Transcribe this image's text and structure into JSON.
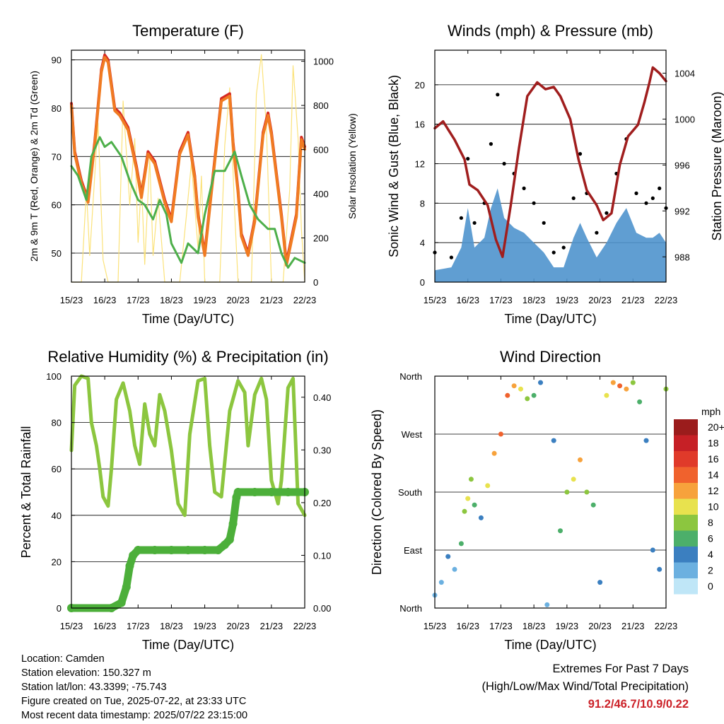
{
  "chart_data": [
    {
      "type": "line",
      "title": "Temperature (F)",
      "xlabel": "Time (Day/UTC)",
      "ylabel_left": "2m & 9m T (Red, Orange) & 2m Td (Green)",
      "ylabel_right": "Solar Insolation (Yellow)",
      "x_ticks": [
        "15/23",
        "16/23",
        "17/23",
        "18/23",
        "19/23",
        "20/23",
        "21/23",
        "22/23"
      ],
      "ylim_left": [
        44,
        92
      ],
      "yticks_left": [
        50,
        60,
        70,
        80,
        90
      ],
      "ylim_right": [
        0,
        1050
      ],
      "yticks_right": [
        0,
        200,
        400,
        600,
        800,
        1000
      ],
      "grid": "horizontal",
      "series": [
        {
          "name": "2m T",
          "color": "#d62a22",
          "axis": "left",
          "x": [
            0,
            0.1,
            0.3,
            0.5,
            0.7,
            0.9,
            1.0,
            1.1,
            1.3,
            1.45,
            1.7,
            1.95,
            2.1,
            2.3,
            2.5,
            2.8,
            3.0,
            3.25,
            3.5,
            3.7,
            3.8,
            4.0,
            4.2,
            4.5,
            4.75,
            4.85,
            5.0,
            5.1,
            5.3,
            5.5,
            5.75,
            5.9,
            6.0,
            6.3,
            6.45,
            6.75,
            6.9,
            7.0
          ],
          "y": [
            81,
            71,
            65,
            61,
            73,
            88,
            91,
            90,
            80,
            79,
            76,
            68,
            62,
            71,
            69,
            61,
            57,
            71,
            75,
            66,
            58,
            50,
            63,
            82,
            83,
            73,
            63,
            54,
            50,
            57,
            75,
            79,
            75,
            58,
            48,
            58,
            74,
            72
          ]
        },
        {
          "name": "9m T",
          "color": "#f07b22",
          "axis": "left",
          "x": [
            0,
            0.1,
            0.3,
            0.5,
            0.7,
            0.9,
            1.0,
            1.1,
            1.3,
            1.45,
            1.7,
            1.95,
            2.1,
            2.3,
            2.5,
            2.8,
            3.0,
            3.25,
            3.5,
            3.7,
            3.8,
            4.0,
            4.2,
            4.5,
            4.75,
            4.85,
            5.0,
            5.1,
            5.3,
            5.5,
            5.75,
            5.9,
            6.0,
            6.3,
            6.45,
            6.75,
            6.9,
            7.0
          ],
          "y": [
            80.5,
            70.5,
            64.5,
            60.5,
            72.5,
            87.5,
            90.5,
            89.5,
            79.5,
            78.5,
            75.5,
            67.5,
            61.5,
            70.5,
            68.5,
            60.5,
            56.5,
            70.5,
            74.5,
            65.5,
            57.5,
            49.5,
            62.5,
            81.5,
            82.5,
            72.5,
            62.5,
            53.5,
            49.5,
            56.5,
            74.5,
            78.5,
            74.5,
            57.5,
            47.5,
            57.5,
            73.5,
            71.5
          ]
        },
        {
          "name": "2m Td",
          "color": "#4daf4a",
          "axis": "left",
          "x": [
            0,
            0.2,
            0.45,
            0.6,
            0.85,
            1.0,
            1.2,
            1.5,
            1.75,
            2.0,
            2.2,
            2.45,
            2.65,
            2.85,
            3.0,
            3.3,
            3.5,
            3.8,
            4.0,
            4.3,
            4.6,
            4.9,
            5.1,
            5.35,
            5.6,
            5.9,
            6.1,
            6.3,
            6.5,
            6.7,
            7.0
          ],
          "y": [
            68,
            66,
            61,
            70,
            74,
            72,
            73,
            70,
            65,
            61,
            60,
            57,
            61,
            58,
            52,
            48,
            52,
            50,
            58,
            67,
            67,
            71,
            66,
            60,
            57,
            55,
            55,
            50,
            47,
            49,
            48
          ]
        },
        {
          "name": "Solar Insolation",
          "color": "#fbe27a",
          "axis": "right",
          "x": [
            0,
            0.3,
            0.45,
            0.55,
            0.8,
            0.95,
            1.1,
            1.4,
            1.55,
            1.75,
            1.9,
            2.0,
            2.1,
            2.2,
            2.35,
            2.45,
            2.6,
            2.8,
            3.0,
            3.25,
            3.45,
            3.6,
            3.8,
            3.9,
            4.0,
            4.2,
            4.45,
            4.6,
            4.75,
            4.9,
            5.0,
            5.2,
            5.4,
            5.55,
            5.7,
            5.85,
            6.0,
            6.2,
            6.35,
            6.55,
            6.65,
            6.8,
            6.9,
            7.0
          ],
          "y": [
            0,
            0,
            420,
            120,
            720,
            100,
            0,
            0,
            820,
            350,
            650,
            180,
            460,
            80,
            560,
            120,
            380,
            0,
            0,
            0,
            300,
            540,
            150,
            480,
            0,
            0,
            0,
            620,
            880,
            310,
            0,
            0,
            0,
            850,
            1030,
            700,
            0,
            0,
            0,
            420,
            980,
            650,
            240,
            0
          ]
        }
      ]
    },
    {
      "type": "scatter",
      "title": "Winds (mph) & Pressure (mb)",
      "xlabel": "Time (Day/UTC)",
      "ylabel_left": "Sonic Wind & Gust (Blue, Black)",
      "ylabel_right": "Station Pressure (Maroon)",
      "x_ticks": [
        "15/23",
        "16/23",
        "17/23",
        "18/23",
        "19/23",
        "20/23",
        "21/23",
        "22/23"
      ],
      "ylim_left": [
        0,
        23.5
      ],
      "yticks_left": [
        0,
        4,
        8,
        12,
        16,
        20
      ],
      "ylim_right": [
        985.8,
        1006
      ],
      "yticks_right": [
        988,
        992,
        996,
        1000,
        1004
      ],
      "grid": "horizontal",
      "series": [
        {
          "name": "Sonic Wind",
          "color": "#4f94cd",
          "axis": "left",
          "x": [
            0,
            0.5,
            0.8,
            1.0,
            1.2,
            1.5,
            1.7,
            1.9,
            2.1,
            2.4,
            2.7,
            3.0,
            3.3,
            3.6,
            3.9,
            4.2,
            4.4,
            4.6,
            4.9,
            5.2,
            5.5,
            5.8,
            6.1,
            6.4,
            6.6,
            6.8,
            7.0
          ],
          "y": [
            1.2,
            1.5,
            3.5,
            7.5,
            3.5,
            4.5,
            7.5,
            9.5,
            6.5,
            5.5,
            5.0,
            4.0,
            3.0,
            1.5,
            1.5,
            4.5,
            6.0,
            4.5,
            2.5,
            4.0,
            6.0,
            7.5,
            5.0,
            4.5,
            4.5,
            5.0,
            4.0
          ]
        },
        {
          "name": "Gust",
          "color": "#000000",
          "axis": "left",
          "x": [
            0,
            0.5,
            0.8,
            1.0,
            1.2,
            1.5,
            1.7,
            1.9,
            2.1,
            2.4,
            2.7,
            3.0,
            3.3,
            3.6,
            3.9,
            4.2,
            4.4,
            4.6,
            4.9,
            5.2,
            5.5,
            5.8,
            6.1,
            6.4,
            6.6,
            6.8,
            7.0
          ],
          "y": [
            3.0,
            2.5,
            6.5,
            12.5,
            6.0,
            8.0,
            14.0,
            19.0,
            12.0,
            11.0,
            9.5,
            8.0,
            6.0,
            3.0,
            3.5,
            8.5,
            13.0,
            9.0,
            5.0,
            7.0,
            11.0,
            14.5,
            9.0,
            8.0,
            8.5,
            9.5,
            7.5
          ]
        },
        {
          "name": "Station Pressure",
          "color": "#a01e1e",
          "axis": "right",
          "x": [
            0,
            0.25,
            0.6,
            0.9,
            1.05,
            1.3,
            1.6,
            1.85,
            2.05,
            2.3,
            2.55,
            2.8,
            3.1,
            3.35,
            3.6,
            3.8,
            4.1,
            4.35,
            4.6,
            4.9,
            5.1,
            5.35,
            5.6,
            5.85,
            6.0,
            6.15,
            6.35,
            6.5,
            6.6,
            6.8,
            7.0
          ],
          "y": [
            999.2,
            999.8,
            998.2,
            996.5,
            994.3,
            993.8,
            992.5,
            989.5,
            988.0,
            992.5,
            997.5,
            1002.0,
            1003.2,
            1002.6,
            1002.8,
            1002.0,
            1000.0,
            996.5,
            993.8,
            992.5,
            991.2,
            991.8,
            996.0,
            998.5,
            999.0,
            999.5,
            1001.5,
            1003.2,
            1004.5,
            1004.0,
            1003.3
          ]
        }
      ]
    },
    {
      "type": "line",
      "title": "Relative Humidity (%) & Precipitation (in)",
      "xlabel": "Time (Day/UTC)",
      "ylabel_left": "Percent & Total Rainfall",
      "x_ticks": [
        "15/23",
        "16/23",
        "17/23",
        "18/23",
        "19/23",
        "20/23",
        "21/23",
        "22/23"
      ],
      "ylim_left": [
        0,
        100
      ],
      "yticks_left": [
        0,
        20,
        40,
        60,
        80,
        100
      ],
      "ylim_right": [
        0,
        0.44
      ],
      "yticks_right": [
        "0.00",
        "0.10",
        "0.20",
        "0.30",
        "0.40"
      ],
      "grid": "horizontal",
      "series": [
        {
          "name": "Relative Humidity",
          "color": "#8cc63f",
          "axis": "left",
          "x": [
            0,
            0.1,
            0.3,
            0.5,
            0.6,
            0.75,
            0.85,
            0.95,
            1.1,
            1.2,
            1.35,
            1.55,
            1.75,
            1.9,
            2.05,
            2.2,
            2.35,
            2.5,
            2.65,
            2.8,
            3.0,
            3.2,
            3.4,
            3.55,
            3.8,
            4.0,
            4.15,
            4.3,
            4.5,
            4.75,
            5.0,
            5.2,
            5.3,
            5.5,
            5.7,
            5.85,
            6.0,
            6.2,
            6.3,
            6.5,
            6.65,
            6.8,
            7.0
          ],
          "y": [
            68,
            96,
            100,
            99,
            80,
            70,
            60,
            48,
            44,
            60,
            90,
            97,
            85,
            70,
            62,
            88,
            75,
            70,
            92,
            85,
            68,
            45,
            40,
            75,
            98,
            99,
            70,
            50,
            48,
            85,
            98,
            93,
            70,
            92,
            99,
            90,
            55,
            45,
            55,
            95,
            99,
            45,
            40
          ]
        },
        {
          "name": "Total Rainfall",
          "color": "#4caf3a",
          "axis": "right",
          "x": [
            0,
            1.2,
            1.5,
            1.65,
            1.75,
            1.85,
            2.0,
            2.5,
            3.0,
            3.5,
            4.0,
            4.4,
            4.6,
            4.75,
            4.85,
            4.95,
            5.0,
            5.5,
            6.0,
            6.5,
            7.0
          ],
          "y": [
            0.0,
            0.0,
            0.01,
            0.04,
            0.08,
            0.1,
            0.11,
            0.11,
            0.11,
            0.11,
            0.11,
            0.11,
            0.12,
            0.13,
            0.16,
            0.21,
            0.22,
            0.22,
            0.22,
            0.22,
            0.22
          ]
        }
      ]
    },
    {
      "type": "scatter",
      "title": "Wind Direction",
      "xlabel": "Time (Day/UTC)",
      "ylabel": "Direction (Colored By Speed)",
      "x_ticks": [
        "15/23",
        "16/23",
        "17/23",
        "18/23",
        "19/23",
        "20/23",
        "21/23",
        "22/23"
      ],
      "y_ticks": [
        "North",
        "East",
        "South",
        "West",
        "North"
      ],
      "ylim": [
        0,
        360
      ],
      "legend": {
        "title": "mph",
        "position": "right",
        "labels": [
          "20+",
          "18",
          "16",
          "14",
          "12",
          "10",
          "8",
          "6",
          "4",
          "2",
          "0"
        ],
        "colors": [
          "#9b1c1c",
          "#c62026",
          "#e03a2a",
          "#f0622d",
          "#f7a23c",
          "#e8e24e",
          "#8cc63f",
          "#4caf6a",
          "#3b7fc0",
          "#6bb0e0",
          "#bfe6f7"
        ]
      },
      "x": [
        0,
        0.2,
        0.4,
        0.6,
        0.8,
        0.9,
        1.0,
        1.1,
        1.2,
        1.4,
        1.6,
        1.8,
        2.0,
        2.2,
        2.4,
        2.6,
        2.8,
        3.0,
        3.2,
        3.4,
        3.6,
        3.8,
        4.0,
        4.2,
        4.4,
        4.6,
        4.8,
        5.0,
        5.2,
        5.4,
        5.6,
        5.8,
        6.0,
        6.2,
        6.4,
        6.6,
        6.8,
        7.0
      ],
      "y": [
        20,
        40,
        80,
        60,
        100,
        150,
        170,
        200,
        160,
        140,
        190,
        240,
        270,
        330,
        345,
        340,
        325,
        330,
        350,
        5,
        260,
        120,
        180,
        200,
        230,
        180,
        160,
        40,
        330,
        350,
        345,
        340,
        350,
        320,
        260,
        90,
        60,
        340
      ],
      "speed": [
        1,
        1,
        2,
        1,
        3,
        4,
        5,
        4,
        3,
        2,
        5,
        6,
        7,
        7,
        6,
        5,
        4,
        3,
        2,
        1,
        2,
        3,
        4,
        5,
        6,
        4,
        3,
        2,
        5,
        6,
        7,
        6,
        4,
        3,
        2,
        2,
        2,
        4
      ]
    }
  ],
  "info": {
    "location": "Location: Camden",
    "elevation": "Station elevation: 150.327 m",
    "latlon": "Station lat/lon: 43.3399; -75.743",
    "created": "Figure created on Tue, 2025-07-22, at 23:33 UTC",
    "latest": "Most recent data timestamp: 2025/07/22 23:15:00"
  },
  "extremes": {
    "title": "Extremes For Past 7 Days",
    "subtitle": "(High/Low/Max Wind/Total Precipitation)",
    "values": "91.2/46.7/10.9/0.22"
  }
}
